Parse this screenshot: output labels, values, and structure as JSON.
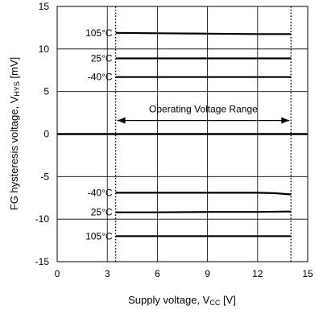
{
  "chart_data": {
    "type": "line",
    "xlabel": {
      "main": "Supply voltage, V",
      "sub": "CC",
      "unit": " [V]"
    },
    "ylabel": {
      "main": "FG hysteresis voltage, V",
      "sub": "HYS",
      "unit": " [mV]"
    },
    "xlim": [
      0,
      15
    ],
    "ylim": [
      -15,
      15
    ],
    "xticks": [
      0,
      3,
      6,
      9,
      12,
      15
    ],
    "yticks": [
      -15,
      -10,
      -5,
      0,
      5,
      10,
      15
    ],
    "grid": true,
    "colors": {
      "line": "#000000",
      "grid": "#000000"
    },
    "series": [
      {
        "name": "105°C",
        "x": [
          3.5,
          6,
          9,
          12,
          14
        ],
        "y": [
          11.9,
          11.85,
          11.8,
          11.75,
          11.75
        ]
      },
      {
        "name": "25°C",
        "x": [
          3.5,
          6,
          9,
          12,
          14
        ],
        "y": [
          8.9,
          8.9,
          8.9,
          8.9,
          8.9
        ]
      },
      {
        "name": "-40°C",
        "x": [
          3.5,
          6,
          9,
          12,
          14
        ],
        "y": [
          6.7,
          6.7,
          6.7,
          6.7,
          6.7
        ]
      },
      {
        "name": "-40°C",
        "x": [
          3.5,
          6,
          9,
          12,
          13,
          14
        ],
        "y": [
          -6.9,
          -6.9,
          -6.9,
          -6.9,
          -6.95,
          -7.1
        ]
      },
      {
        "name": "25°C",
        "x": [
          3.5,
          6,
          9,
          12,
          14
        ],
        "y": [
          -9.2,
          -9.2,
          -9.15,
          -9.15,
          -9.1
        ]
      },
      {
        "name": "105°C",
        "x": [
          3.5,
          6,
          9,
          12,
          14
        ],
        "y": [
          -12,
          -12,
          -12,
          -12,
          -12
        ]
      }
    ],
    "annotation": {
      "text": "Operating Voltage Range",
      "range": [
        3.5,
        14
      ],
      "arrow_y": 1.6
    }
  }
}
